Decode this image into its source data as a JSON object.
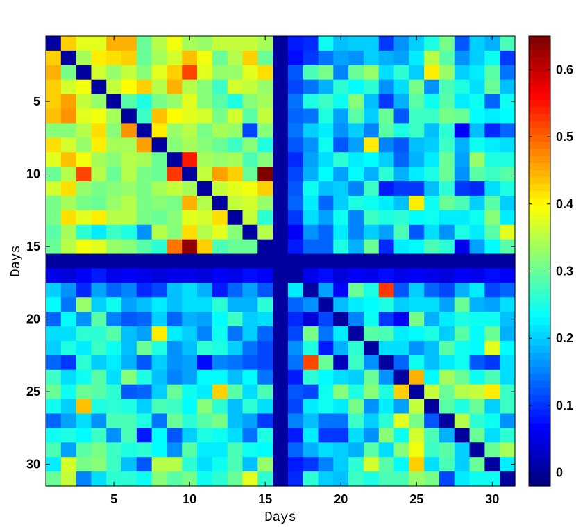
{
  "chart_data": {
    "type": "heatmap",
    "title": "",
    "xlabel": "Days",
    "ylabel": "Days",
    "x_ticks": [
      5,
      10,
      15,
      20,
      25,
      30
    ],
    "y_ticks": [
      5,
      10,
      15,
      20,
      25,
      30
    ],
    "colorbar_ticks": [
      0,
      0.1,
      0.2,
      0.3,
      0.4,
      0.5,
      0.6
    ],
    "colorbar_range": [
      -0.02,
      0.65
    ],
    "colormap": "jet",
    "size": 31,
    "matrix": [
      [
        0.0,
        0.43,
        0.38,
        0.38,
        0.45,
        0.45,
        0.3,
        0.35,
        0.39,
        0.34,
        0.33,
        0.36,
        0.36,
        0.36,
        0.34,
        0.0,
        0.08,
        0.09,
        0.24,
        0.19,
        0.2,
        0.2,
        0.1,
        0.16,
        0.2,
        0.25,
        0.31,
        0.12,
        0.2,
        0.18,
        0.28
      ],
      [
        0.43,
        0.0,
        0.34,
        0.41,
        0.42,
        0.43,
        0.3,
        0.34,
        0.37,
        0.44,
        0.39,
        0.3,
        0.35,
        0.43,
        0.3,
        0.0,
        0.07,
        0.1,
        0.14,
        0.17,
        0.16,
        0.2,
        0.18,
        0.17,
        0.22,
        0.35,
        0.29,
        0.16,
        0.2,
        0.24,
        0.1
      ],
      [
        0.45,
        0.31,
        0.0,
        0.37,
        0.33,
        0.36,
        0.32,
        0.38,
        0.43,
        0.52,
        0.38,
        0.33,
        0.33,
        0.38,
        0.42,
        0.0,
        0.12,
        0.28,
        0.31,
        0.15,
        0.3,
        0.33,
        0.21,
        0.26,
        0.2,
        0.41,
        0.33,
        0.2,
        0.22,
        0.29,
        0.14
      ],
      [
        0.43,
        0.37,
        0.39,
        0.0,
        0.36,
        0.4,
        0.43,
        0.35,
        0.45,
        0.35,
        0.32,
        0.27,
        0.37,
        0.36,
        0.33,
        0.0,
        0.11,
        0.14,
        0.18,
        0.26,
        0.23,
        0.26,
        0.16,
        0.21,
        0.31,
        0.16,
        0.28,
        0.25,
        0.21,
        0.3,
        0.19
      ],
      [
        0.43,
        0.46,
        0.36,
        0.33,
        0.0,
        0.29,
        0.25,
        0.31,
        0.33,
        0.38,
        0.32,
        0.29,
        0.25,
        0.32,
        0.34,
        0.0,
        0.14,
        0.25,
        0.27,
        0.24,
        0.32,
        0.19,
        0.1,
        0.18,
        0.29,
        0.24,
        0.29,
        0.22,
        0.24,
        0.13,
        0.24
      ],
      [
        0.44,
        0.47,
        0.38,
        0.39,
        0.34,
        0.0,
        0.27,
        0.44,
        0.4,
        0.38,
        0.37,
        0.31,
        0.37,
        0.29,
        0.36,
        0.0,
        0.13,
        0.14,
        0.25,
        0.17,
        0.29,
        0.2,
        0.3,
        0.12,
        0.27,
        0.27,
        0.31,
        0.3,
        0.23,
        0.22,
        0.23
      ],
      [
        0.32,
        0.32,
        0.35,
        0.42,
        0.32,
        0.47,
        0.0,
        0.41,
        0.33,
        0.35,
        0.31,
        0.34,
        0.33,
        0.11,
        0.32,
        0.0,
        0.14,
        0.2,
        0.22,
        0.16,
        0.2,
        0.15,
        0.29,
        0.25,
        0.27,
        0.19,
        0.26,
        0.06,
        0.19,
        0.09,
        0.13
      ],
      [
        0.42,
        0.37,
        0.33,
        0.41,
        0.34,
        0.34,
        0.46,
        0.0,
        0.32,
        0.34,
        0.32,
        0.3,
        0.27,
        0.32,
        0.25,
        0.0,
        0.12,
        0.16,
        0.24,
        0.12,
        0.17,
        0.41,
        0.15,
        0.12,
        0.19,
        0.2,
        0.27,
        0.18,
        0.24,
        0.22,
        0.21
      ],
      [
        0.38,
        0.44,
        0.39,
        0.34,
        0.32,
        0.35,
        0.34,
        0.3,
        0.0,
        0.55,
        0.34,
        0.33,
        0.34,
        0.28,
        0.32,
        0.0,
        0.09,
        0.17,
        0.21,
        0.26,
        0.22,
        0.23,
        0.2,
        0.13,
        0.18,
        0.22,
        0.3,
        0.17,
        0.33,
        0.25,
        0.25
      ],
      [
        0.3,
        0.35,
        0.52,
        0.35,
        0.3,
        0.35,
        0.31,
        0.3,
        0.53,
        0.0,
        0.36,
        0.46,
        0.43,
        0.3,
        0.65,
        0.0,
        0.11,
        0.18,
        0.23,
        0.17,
        0.23,
        0.18,
        0.26,
        0.18,
        0.22,
        0.25,
        0.3,
        0.16,
        0.29,
        0.27,
        0.29
      ],
      [
        0.37,
        0.42,
        0.33,
        0.31,
        0.32,
        0.33,
        0.31,
        0.34,
        0.36,
        0.34,
        0.0,
        0.36,
        0.38,
        0.39,
        0.43,
        0.0,
        0.12,
        0.24,
        0.19,
        0.2,
        0.15,
        0.27,
        0.08,
        0.1,
        0.1,
        0.19,
        0.26,
        0.1,
        0.09,
        0.21,
        0.25
      ],
      [
        0.31,
        0.34,
        0.31,
        0.3,
        0.33,
        0.35,
        0.31,
        0.32,
        0.31,
        0.45,
        0.35,
        0.0,
        0.36,
        0.37,
        0.33,
        0.0,
        0.13,
        0.22,
        0.13,
        0.2,
        0.25,
        0.24,
        0.22,
        0.19,
        0.41,
        0.24,
        0.3,
        0.28,
        0.2,
        0.29,
        0.2
      ],
      [
        0.31,
        0.42,
        0.38,
        0.41,
        0.35,
        0.35,
        0.31,
        0.3,
        0.32,
        0.38,
        0.37,
        0.42,
        0.0,
        0.36,
        0.26,
        0.0,
        0.1,
        0.21,
        0.17,
        0.24,
        0.15,
        0.27,
        0.25,
        0.26,
        0.23,
        0.24,
        0.22,
        0.22,
        0.24,
        0.32,
        0.22
      ],
      [
        0.29,
        0.34,
        0.26,
        0.22,
        0.27,
        0.25,
        0.16,
        0.35,
        0.32,
        0.42,
        0.35,
        0.38,
        0.32,
        0.0,
        0.35,
        0.0,
        0.06,
        0.16,
        0.13,
        0.22,
        0.15,
        0.2,
        0.17,
        0.28,
        0.12,
        0.21,
        0.16,
        0.25,
        0.22,
        0.29,
        0.38
      ],
      [
        0.3,
        0.35,
        0.39,
        0.38,
        0.33,
        0.32,
        0.29,
        0.26,
        0.49,
        0.64,
        0.43,
        0.28,
        0.3,
        0.3,
        0.0,
        0.0,
        0.08,
        0.13,
        0.13,
        0.25,
        0.18,
        0.3,
        0.09,
        0.22,
        0.23,
        0.28,
        0.26,
        0.05,
        0.17,
        0.23,
        0.29
      ],
      [
        0.0,
        0.0,
        0.0,
        0.0,
        0.0,
        0.0,
        0.0,
        0.0,
        0.0,
        0.0,
        0.0,
        0.0,
        0.0,
        0.0,
        0.0,
        0.0,
        0.0,
        0.0,
        0.0,
        0.0,
        0.0,
        0.0,
        0.0,
        0.0,
        0.0,
        0.0,
        0.0,
        0.0,
        0.0,
        0.0,
        0.0
      ],
      [
        0.05,
        0.04,
        0.06,
        0.08,
        0.05,
        0.06,
        0.05,
        0.04,
        0.05,
        0.05,
        0.04,
        0.06,
        0.05,
        0.07,
        0.06,
        0.0,
        0.0,
        0.05,
        0.07,
        0.04,
        0.06,
        0.05,
        0.07,
        0.05,
        0.06,
        0.05,
        0.04,
        0.06,
        0.05,
        0.07,
        0.06
      ],
      [
        0.2,
        0.16,
        0.09,
        0.17,
        0.13,
        0.15,
        0.09,
        0.11,
        0.19,
        0.21,
        0.18,
        0.08,
        0.13,
        0.17,
        0.12,
        0.0,
        0.22,
        0.0,
        0.17,
        0.06,
        0.3,
        0.25,
        0.53,
        0.12,
        0.2,
        0.13,
        0.11,
        0.18,
        0.22,
        0.11,
        0.13
      ],
      [
        0.23,
        0.14,
        0.33,
        0.2,
        0.24,
        0.17,
        0.19,
        0.22,
        0.19,
        0.21,
        0.21,
        0.26,
        0.18,
        0.18,
        0.26,
        0.0,
        0.13,
        0.16,
        0.0,
        0.19,
        0.22,
        0.23,
        0.25,
        0.2,
        0.21,
        0.21,
        0.17,
        0.3,
        0.18,
        0.17,
        0.21
      ],
      [
        0.13,
        0.23,
        0.16,
        0.29,
        0.15,
        0.12,
        0.13,
        0.2,
        0.13,
        0.18,
        0.17,
        0.23,
        0.27,
        0.2,
        0.21,
        0.0,
        0.09,
        0.04,
        0.11,
        0.0,
        0.15,
        0.24,
        0.1,
        0.06,
        0.31,
        0.18,
        0.22,
        0.25,
        0.24,
        0.24,
        0.19
      ],
      [
        0.21,
        0.21,
        0.26,
        0.26,
        0.29,
        0.19,
        0.17,
        0.41,
        0.22,
        0.2,
        0.15,
        0.24,
        0.14,
        0.2,
        0.13,
        0.0,
        0.11,
        0.31,
        0.14,
        0.22,
        0.0,
        0.29,
        0.28,
        0.22,
        0.23,
        0.25,
        0.2,
        0.29,
        0.23,
        0.3,
        0.18
      ],
      [
        0.2,
        0.25,
        0.22,
        0.27,
        0.24,
        0.19,
        0.3,
        0.25,
        0.16,
        0.19,
        0.26,
        0.25,
        0.2,
        0.14,
        0.11,
        0.0,
        0.16,
        0.25,
        0.08,
        0.18,
        0.26,
        0.0,
        0.21,
        0.21,
        0.16,
        0.19,
        0.29,
        0.24,
        0.23,
        0.38,
        0.23
      ],
      [
        0.13,
        0.1,
        0.26,
        0.2,
        0.22,
        0.18,
        0.12,
        0.2,
        0.16,
        0.17,
        0.07,
        0.15,
        0.14,
        0.12,
        0.11,
        0.0,
        0.14,
        0.52,
        0.3,
        0.02,
        0.27,
        0.16,
        0.0,
        0.13,
        0.24,
        0.19,
        0.22,
        0.24,
        0.12,
        0.1,
        0.21
      ],
      [
        0.27,
        0.21,
        0.24,
        0.29,
        0.21,
        0.32,
        0.25,
        0.19,
        0.15,
        0.17,
        0.23,
        0.23,
        0.19,
        0.23,
        0.14,
        0.0,
        0.08,
        0.26,
        0.23,
        0.21,
        0.2,
        0.3,
        0.16,
        0.0,
        0.45,
        0.23,
        0.34,
        0.3,
        0.24,
        0.28,
        0.21
      ],
      [
        0.3,
        0.24,
        0.3,
        0.29,
        0.26,
        0.12,
        0.13,
        0.2,
        0.3,
        0.24,
        0.22,
        0.43,
        0.29,
        0.21,
        0.28,
        0.0,
        0.12,
        0.11,
        0.24,
        0.32,
        0.25,
        0.32,
        0.25,
        0.43,
        0.0,
        0.36,
        0.3,
        0.35,
        0.36,
        0.41,
        0.27
      ],
      [
        0.24,
        0.2,
        0.44,
        0.25,
        0.26,
        0.25,
        0.2,
        0.28,
        0.27,
        0.23,
        0.32,
        0.26,
        0.19,
        0.26,
        0.21,
        0.0,
        0.11,
        0.22,
        0.24,
        0.22,
        0.31,
        0.16,
        0.22,
        0.17,
        0.36,
        0.0,
        0.29,
        0.25,
        0.3,
        0.2,
        0.27
      ],
      [
        0.13,
        0.17,
        0.21,
        0.16,
        0.28,
        0.28,
        0.25,
        0.14,
        0.3,
        0.26,
        0.29,
        0.31,
        0.19,
        0.17,
        0.1,
        0.0,
        0.15,
        0.19,
        0.14,
        0.14,
        0.27,
        0.2,
        0.26,
        0.38,
        0.31,
        0.12,
        0.0,
        0.35,
        0.26,
        0.24,
        0.16
      ],
      [
        0.24,
        0.25,
        0.23,
        0.27,
        0.16,
        0.28,
        0.08,
        0.23,
        0.12,
        0.2,
        0.25,
        0.24,
        0.21,
        0.14,
        0.25,
        0.0,
        0.08,
        0.22,
        0.1,
        0.1,
        0.21,
        0.16,
        0.32,
        0.24,
        0.37,
        0.28,
        0.18,
        0.0,
        0.3,
        0.21,
        0.26
      ],
      [
        0.28,
        0.17,
        0.29,
        0.31,
        0.27,
        0.25,
        0.26,
        0.23,
        0.16,
        0.29,
        0.22,
        0.22,
        0.28,
        0.24,
        0.23,
        0.0,
        0.13,
        0.18,
        0.21,
        0.2,
        0.18,
        0.29,
        0.21,
        0.32,
        0.39,
        0.27,
        0.29,
        0.2,
        0.0,
        0.3,
        0.34
      ],
      [
        0.22,
        0.37,
        0.31,
        0.32,
        0.27,
        0.19,
        0.12,
        0.35,
        0.35,
        0.26,
        0.21,
        0.24,
        0.28,
        0.19,
        0.33,
        0.0,
        0.08,
        0.1,
        0.15,
        0.2,
        0.26,
        0.37,
        0.29,
        0.23,
        0.43,
        0.21,
        0.28,
        0.2,
        0.3,
        0.0,
        0.22
      ],
      [
        0.3,
        0.36,
        0.15,
        0.21,
        0.26,
        0.26,
        0.24,
        0.32,
        0.29,
        0.31,
        0.24,
        0.26,
        0.3,
        0.38,
        0.26,
        0.0,
        0.09,
        0.26,
        0.2,
        0.19,
        0.27,
        0.25,
        0.28,
        0.28,
        0.33,
        0.31,
        0.11,
        0.22,
        0.24,
        0.24,
        0.0
      ]
    ]
  }
}
